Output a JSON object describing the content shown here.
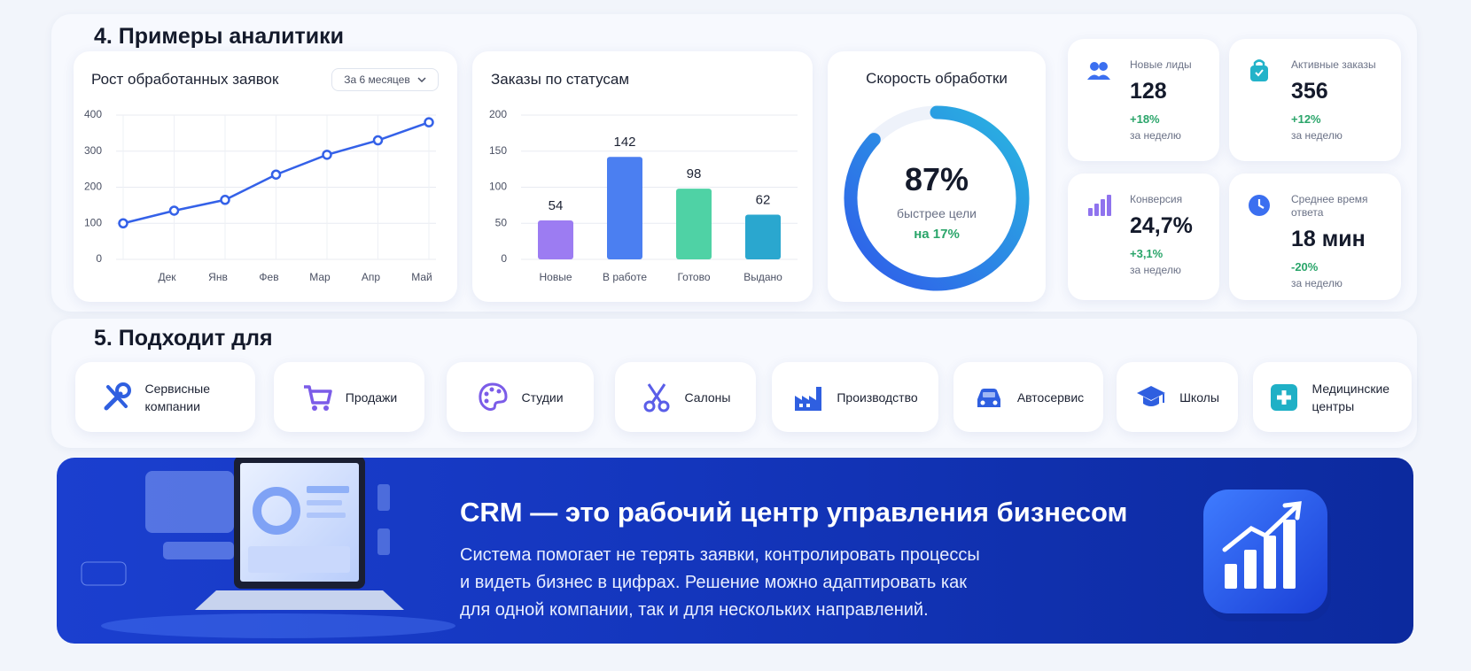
{
  "section4": {
    "title": "4. Примеры аналитики"
  },
  "chart_data": [
    {
      "type": "line",
      "title": "Рост обработанных заявок",
      "period": "За 6 месяцев",
      "categories": [
        null,
        "Дек",
        "Янв",
        "Фев",
        "Мар",
        "Апр",
        "Май"
      ],
      "values": [
        100,
        135,
        165,
        235,
        290,
        330,
        380
      ],
      "color": "#3461e8",
      "ylim": [
        0,
        400
      ],
      "yticks": [
        0,
        100,
        200,
        300,
        400
      ],
      "grid": true
    },
    {
      "type": "bar",
      "title": "Заказы по статусам",
      "categories": [
        "Новые",
        "В работе",
        "Готово",
        "Выдано"
      ],
      "values": [
        54,
        142,
        98,
        62
      ],
      "colors": [
        "#9c7cf2",
        "#4b7ff1",
        "#4fd2a5",
        "#2aa7cf"
      ],
      "ylim": [
        0,
        200
      ],
      "yticks": [
        0,
        50,
        100,
        150,
        200
      ],
      "grid": true
    },
    {
      "type": "gauge",
      "title": "Скорость обработки",
      "value": 87,
      "value_label": "87%",
      "ylim": [
        0,
        100
      ],
      "subtitle": "быстрее цели",
      "annotation": "на 17%"
    }
  ],
  "kpis": [
    {
      "label": "Новые лиды",
      "value": "128",
      "change": "+18%",
      "period": "за неделю"
    },
    {
      "label": "Активные заказы",
      "value": "356",
      "change": "+12%",
      "period": "за неделю"
    },
    {
      "label": "Конверсия",
      "value": "24,7%",
      "change": "+3,1%",
      "period": "за неделю"
    },
    {
      "label": "Среднее время ответа",
      "value": "18 мин",
      "change": "-20%",
      "period": "за неделю"
    }
  ],
  "section5": {
    "title": "5. Подходит для",
    "items": [
      "Сервисные компании",
      "Продажи",
      "Студии",
      "Салоны",
      "Производство",
      "Автосервис",
      "Школы",
      "Медицинские центры"
    ]
  },
  "banner": {
    "title": "CRM — это рабочий центр управления бизнесом",
    "lines": [
      "Система помогает не терять заявки, контролировать процессы",
      "и видеть бизнес в цифрах. Решение можно адаптировать как",
      "для одной компании, так и для нескольких направлений."
    ]
  }
}
